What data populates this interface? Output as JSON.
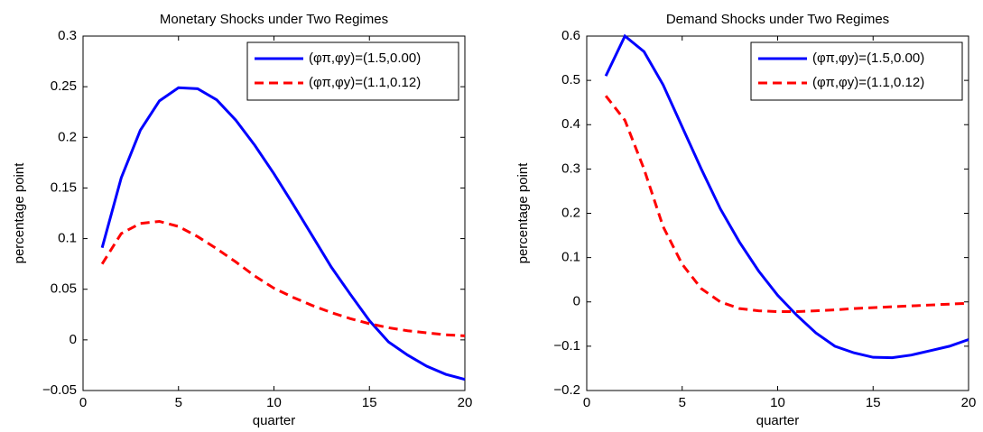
{
  "chart_data": [
    {
      "type": "line",
      "title": "Monetary Shocks under Two Regimes",
      "xlabel": "quarter",
      "ylabel": "percentage point",
      "x": [
        1,
        2,
        3,
        4,
        5,
        6,
        7,
        8,
        9,
        10,
        11,
        12,
        13,
        14,
        15,
        16,
        17,
        18,
        19,
        20
      ],
      "series": [
        {
          "name": "(φπ,φy)=(1.5,0.00)",
          "color": "#0000ff",
          "dash": "solid",
          "values": [
            0.091,
            0.16,
            0.207,
            0.236,
            0.249,
            0.248,
            0.237,
            0.217,
            0.192,
            0.164,
            0.134,
            0.103,
            0.072,
            0.045,
            0.019,
            -0.002,
            -0.015,
            -0.026,
            -0.034,
            -0.039
          ]
        },
        {
          "name": "(φπ,φy)=(1.1,0.12)",
          "color": "#ff0000",
          "dash": "dashed",
          "values": [
            0.075,
            0.105,
            0.115,
            0.117,
            0.112,
            0.102,
            0.09,
            0.077,
            0.063,
            0.051,
            0.042,
            0.034,
            0.027,
            0.021,
            0.016,
            0.012,
            0.009,
            0.007,
            0.005,
            0.004
          ]
        }
      ],
      "xlim": [
        0,
        20
      ],
      "xticks": [
        0,
        5,
        10,
        15,
        20
      ],
      "ylim": [
        -0.05,
        0.3
      ],
      "yticks": [
        {
          "value": -0.05,
          "label": "−0.05"
        },
        0,
        0.05,
        0.1,
        0.15,
        0.2,
        0.25,
        0.3
      ],
      "grid": false,
      "legend": "top-right"
    },
    {
      "type": "line",
      "title": "Demand Shocks under Two Regimes",
      "xlabel": "quarter",
      "ylabel": "percentage point",
      "x": [
        1,
        2,
        3,
        4,
        5,
        6,
        7,
        8,
        9,
        10,
        11,
        12,
        13,
        14,
        15,
        16,
        17,
        18,
        19,
        20
      ],
      "series": [
        {
          "name": "(φπ,φy)=(1.5,0.00)",
          "color": "#0000ff",
          "dash": "solid",
          "values": [
            0.51,
            0.6,
            0.565,
            0.49,
            0.395,
            0.3,
            0.21,
            0.135,
            0.07,
            0.015,
            -0.03,
            -0.07,
            -0.1,
            -0.115,
            -0.125,
            -0.126,
            -0.12,
            -0.11,
            -0.1,
            -0.085
          ]
        },
        {
          "name": "(φπ,φy)=(1.1,0.12)",
          "color": "#ff0000",
          "dash": "dashed",
          "values": [
            0.465,
            0.41,
            0.3,
            0.17,
            0.085,
            0.03,
            0.0,
            -0.015,
            -0.02,
            -0.022,
            -0.022,
            -0.02,
            -0.018,
            -0.015,
            -0.013,
            -0.011,
            -0.009,
            -0.007,
            -0.005,
            -0.003
          ]
        }
      ],
      "xlim": [
        0,
        20
      ],
      "xticks": [
        0,
        5,
        10,
        15,
        20
      ],
      "ylim": [
        -0.2,
        0.6
      ],
      "yticks": [
        {
          "value": -0.2,
          "label": "−0.2"
        },
        {
          "value": -0.1,
          "label": "−0.1"
        },
        0,
        0.1,
        0.2,
        0.3,
        0.4,
        0.5,
        0.6
      ],
      "grid": false,
      "legend": "top-right"
    }
  ]
}
